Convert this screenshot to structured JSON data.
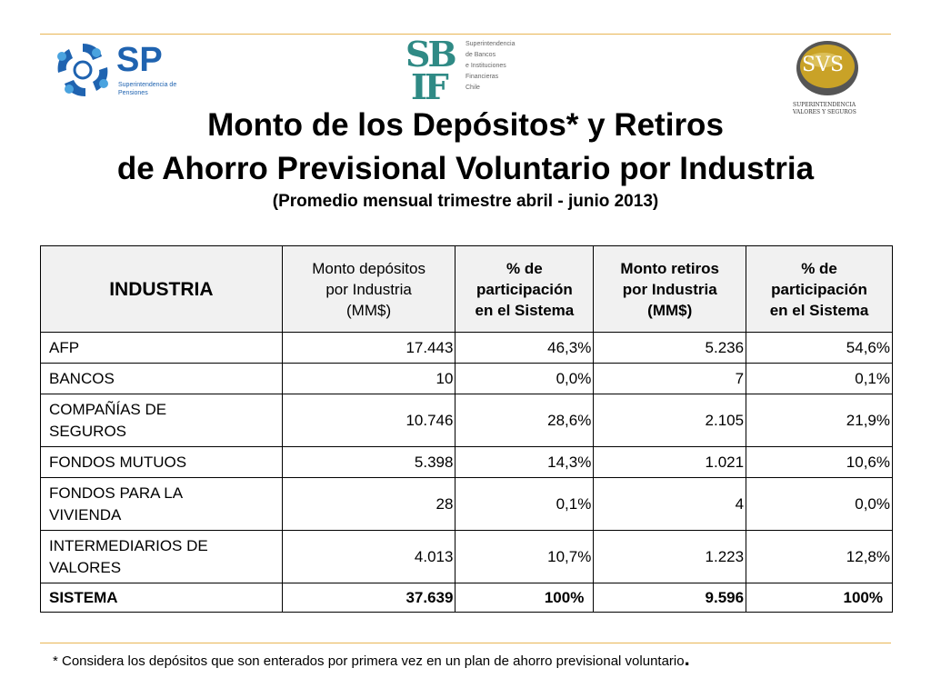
{
  "logos": {
    "sp": {
      "mark": "SP",
      "line1": "Superintendencia de",
      "line2": "Pensiones"
    },
    "sbif": {
      "mark_top": "SB",
      "mark_bottom": "IF",
      "lines": [
        "Superintendencia",
        "de Bancos",
        "e Instituciones",
        "Financieras",
        "Chile"
      ]
    },
    "svs": {
      "mark": "SVS",
      "line1": "SUPERINTENDENCIA",
      "line2": "VALORES Y SEGUROS"
    }
  },
  "title": {
    "line1": "Monto de los Depósitos* y Retiros",
    "line2": "de Ahorro Previsional Voluntario por Industria",
    "subtitle": "(Promedio mensual trimestre abril - junio 2013)"
  },
  "table": {
    "headers": {
      "industria": "INDUSTRIA",
      "dep1": "Monto depósitos",
      "dep2": "por Industria",
      "dep3": "(MM$)",
      "pd1": "% de",
      "pd2": "participación",
      "pd3": "en el Sistema",
      "ret1": "Monto retiros",
      "ret2": "por Industria",
      "ret3": "(MM$)",
      "pr1": "% de",
      "pr2": "participación",
      "pr3": "en el Sistema"
    },
    "rows": [
      {
        "n1": "AFP",
        "n2": "",
        "dep": "17.443",
        "pdep": "46,3%",
        "ret": "5.236",
        "pret": "54,6%"
      },
      {
        "n1": "BANCOS",
        "n2": "",
        "dep": "10",
        "pdep": "0,0%",
        "ret": "7",
        "pret": "0,1%"
      },
      {
        "n1": "COMPAÑÍAS DE",
        "n2": "SEGUROS",
        "dep": "10.746",
        "pdep": "28,6%",
        "ret": "2.105",
        "pret": "21,9%"
      },
      {
        "n1": "FONDOS MUTUOS",
        "n2": "",
        "dep": "5.398",
        "pdep": "14,3%",
        "ret": "1.021",
        "pret": "10,6%"
      },
      {
        "n1": "FONDOS PARA LA",
        "n2": "VIVIENDA",
        "dep": "28",
        "pdep": "0,1%",
        "ret": "4",
        "pret": "0,0%"
      },
      {
        "n1": "INTERMEDIARIOS DE",
        "n2": "VALORES",
        "dep": "4.013",
        "pdep": "10,7%",
        "ret": "1.223",
        "pret": "12,8%"
      }
    ],
    "total": {
      "name": "SISTEMA",
      "dep": "37.639",
      "pdep": "100%",
      "ret": "9.596",
      "pret": "100%"
    }
  },
  "footnote": {
    "text": "* Considera los depósitos que son enterados por primera vez en un plan de ahorro previsional voluntario",
    "dot": "."
  },
  "colors": {
    "rule": "#e8b654",
    "sp_blue": "#1f63b0",
    "sbif_teal": "#2f8a85",
    "svs_gold": "#c9a227",
    "header_bg": "#f1f1f1"
  }
}
